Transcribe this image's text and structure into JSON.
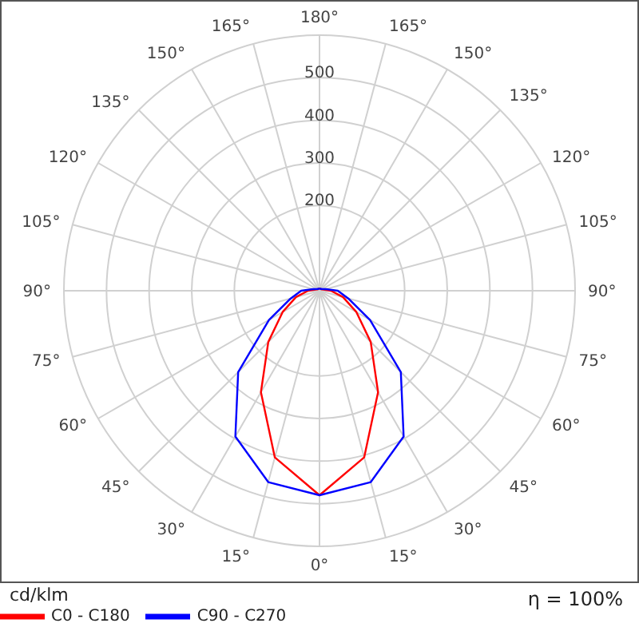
{
  "chart_data": {
    "type": "radar",
    "categories": [
      "180°",
      "165°",
      "150°",
      "135°",
      "120°",
      "105°",
      "90°",
      "75°",
      "60°",
      "45°",
      "30°",
      "15°",
      "0°",
      "15°",
      "30°",
      "45°",
      "60°",
      "75°",
      "90°",
      "105°",
      "120°",
      "135°",
      "150°",
      "165°"
    ],
    "series": [
      {
        "name": "C0 - C180",
        "color": "#ff0000",
        "values": [
          5,
          5,
          5,
          5,
          6,
          10,
          27,
          57,
          100,
          170,
          275,
          405,
          480,
          405,
          275,
          170,
          100,
          57,
          27,
          10,
          6,
          5,
          5,
          5
        ]
      },
      {
        "name": "C90 - C270",
        "color": "#0000ff",
        "values": [
          5,
          5,
          5,
          6,
          8,
          15,
          43,
          70,
          137,
          270,
          395,
          465,
          480,
          465,
          395,
          270,
          137,
          70,
          43,
          15,
          8,
          6,
          5,
          5
        ]
      }
    ],
    "ylim": [
      0,
      600
    ],
    "yticks": [
      200,
      300,
      400,
      500
    ],
    "ylabel": "cd/klm",
    "annotations": [
      "η = 100%"
    ],
    "grid": true,
    "legend": "bottom left",
    "line_style": "solid",
    "marker": "none"
  }
}
